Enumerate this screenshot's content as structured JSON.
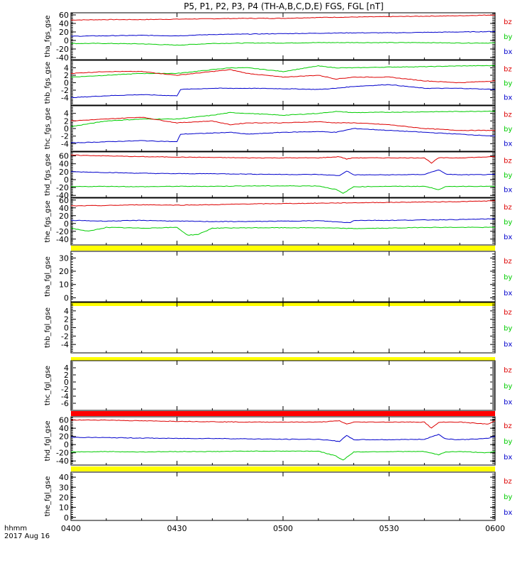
{
  "title": "P5, P1, P2, P3, P4 (TH-A,B,C,D,E) FGS, FGL [nT]",
  "footer": {
    "hhmm": "hhmm",
    "date": "2017 Aug 16"
  },
  "colors": {
    "bz": "#dd0000",
    "by": "#00cc00",
    "bx": "#0000cc",
    "yellow": "#ffff00",
    "red_bar": "#ff0000"
  },
  "chart_data": {
    "type": "line",
    "x_ticks": [
      "0400",
      "0430",
      "0500",
      "0530",
      "0600"
    ],
    "x_range": [
      0,
      120
    ],
    "x_unit": "minutes after 04:00 UT",
    "legend": [
      "bz",
      "by",
      "bx"
    ],
    "panels": [
      {
        "label": "tha_fgs_gse",
        "ylim": [
          -45,
          65
        ],
        "ticks": [
          60,
          40,
          20,
          0,
          -20,
          -40
        ],
        "series": [
          {
            "name": "bz",
            "x": [
              0,
              10,
              20,
              30,
              40,
              50,
              60,
              70,
              80,
              90,
              100,
              110,
              120
            ],
            "y": [
              48,
              49,
              49,
              50,
              51,
              52,
              52,
              54,
              55,
              56,
              57,
              58,
              60
            ]
          },
          {
            "name": "by",
            "x": [
              0,
              10,
              20,
              30,
              40,
              50,
              60,
              70,
              80,
              90,
              100,
              110,
              120
            ],
            "y": [
              -7,
              -7,
              -8,
              -11,
              -7,
              -6,
              -6,
              -5,
              -5,
              -5,
              -5,
              -6,
              -6
            ]
          },
          {
            "name": "bx",
            "x": [
              0,
              10,
              20,
              30,
              40,
              50,
              60,
              70,
              80,
              90,
              100,
              110,
              120
            ],
            "y": [
              10,
              11,
              12,
              11,
              14,
              15,
              16,
              17,
              18,
              18,
              19,
              20,
              21
            ]
          }
        ]
      },
      {
        "label": "thb_fgs_gse",
        "ylim": [
          -6,
          6
        ],
        "ticks": [
          4,
          2,
          0,
          -2,
          -4
        ],
        "series": [
          {
            "name": "by",
            "x": [
              0,
              10,
              20,
              30,
              40,
              45,
              50,
              60,
              70,
              75,
              80,
              90,
              100,
              110,
              120
            ],
            "y": [
              1.5,
              2.0,
              2.5,
              2.5,
              3.5,
              4.0,
              4.0,
              3.0,
              4.5,
              4.0,
              4.0,
              4.2,
              4.3,
              4.5,
              4.6
            ]
          },
          {
            "name": "bz",
            "x": [
              0,
              10,
              20,
              30,
              40,
              45,
              50,
              60,
              70,
              75,
              80,
              90,
              100,
              110,
              120
            ],
            "y": [
              2.5,
              3.0,
              3.0,
              2.0,
              3.0,
              3.5,
              2.5,
              1.5,
              2.0,
              1.0,
              1.5,
              1.5,
              0.5,
              0.0,
              0.5
            ]
          },
          {
            "name": "bx",
            "x": [
              0,
              10,
              20,
              30,
              31,
              40,
              45,
              50,
              60,
              70,
              75,
              80,
              90,
              100,
              110,
              120
            ],
            "y": [
              -4.0,
              -3.5,
              -3.2,
              -3.5,
              -1.8,
              -1.5,
              -1.5,
              -1.5,
              -1.6,
              -1.8,
              -1.5,
              -1.0,
              -0.5,
              -1.5,
              -1.5,
              -1.8
            ]
          }
        ]
      },
      {
        "label": "thc_fgs_gse",
        "ylim": [
          -6,
          6
        ],
        "ticks": [
          4,
          2,
          0,
          -2,
          -4
        ],
        "series": [
          {
            "name": "by",
            "x": [
              0,
              10,
              20,
              30,
              40,
              45,
              50,
              60,
              70,
              75,
              80,
              90,
              100,
              110,
              120
            ],
            "y": [
              0.5,
              2.0,
              2.5,
              2.5,
              3.5,
              4.2,
              4.0,
              3.5,
              4.0,
              4.5,
              4.2,
              4.3,
              4.4,
              4.5,
              4.6
            ]
          },
          {
            "name": "bz",
            "x": [
              0,
              10,
              20,
              30,
              40,
              45,
              50,
              60,
              70,
              75,
              80,
              90,
              100,
              110,
              120
            ],
            "y": [
              2.0,
              2.5,
              3.0,
              1.5,
              2.0,
              1.0,
              1.5,
              1.5,
              1.8,
              1.5,
              1.5,
              1.0,
              0.0,
              -0.5,
              -0.5
            ]
          },
          {
            "name": "bx",
            "x": [
              0,
              10,
              20,
              30,
              31,
              40,
              45,
              50,
              60,
              70,
              75,
              80,
              90,
              100,
              110,
              120
            ],
            "y": [
              -3.8,
              -3.5,
              -3.2,
              -3.5,
              -1.5,
              -1.2,
              -1.0,
              -1.5,
              -1.0,
              -0.8,
              -1.0,
              0.0,
              -0.5,
              -1.0,
              -1.5,
              -2.0
            ]
          }
        ]
      },
      {
        "label": "thd_fgs_gse",
        "ylim": [
          -45,
          70
        ],
        "ticks": [
          60,
          40,
          20,
          0,
          -20,
          -40
        ],
        "series": [
          {
            "name": "bz",
            "x": [
              0,
              10,
              20,
              30,
              40,
              50,
              60,
              70,
              76,
              78,
              80,
              90,
              100,
              102,
              104,
              106,
              110,
              120
            ],
            "y": [
              62,
              60,
              58,
              57,
              56,
              55,
              55,
              55,
              58,
              52,
              55,
              55,
              55,
              42,
              55,
              55,
              55,
              58
            ]
          },
          {
            "name": "bx",
            "x": [
              0,
              10,
              20,
              30,
              40,
              50,
              60,
              70,
              76,
              78,
              80,
              90,
              100,
              104,
              106,
              110,
              120
            ],
            "y": [
              20,
              18,
              16,
              15,
              15,
              14,
              13,
              13,
              10,
              22,
              12,
              12,
              13,
              25,
              14,
              12,
              13
            ]
          },
          {
            "name": "by",
            "x": [
              0,
              10,
              20,
              30,
              40,
              50,
              60,
              70,
              75,
              77,
              80,
              90,
              100,
              104,
              106,
              110,
              120
            ],
            "y": [
              -18,
              -17,
              -18,
              -17,
              -17,
              -16,
              -16,
              -16,
              -25,
              -35,
              -18,
              -17,
              -17,
              -25,
              -18,
              -17,
              -17
            ]
          }
        ]
      },
      {
        "label": "the_fgs_gse",
        "ylim": [
          -55,
          65
        ],
        "ticks": [
          60,
          40,
          20,
          0,
          -20,
          -40
        ],
        "series": [
          {
            "name": "bz",
            "x": [
              0,
              10,
              20,
              30,
              40,
              50,
              60,
              70,
              80,
              90,
              100,
              110,
              120
            ],
            "y": [
              45,
              46,
              48,
              47,
              48,
              50,
              51,
              52,
              53,
              54,
              55,
              56,
              58
            ]
          },
          {
            "name": "bx",
            "x": [
              0,
              10,
              20,
              30,
              40,
              50,
              60,
              70,
              79,
              80,
              90,
              100,
              110,
              120
            ],
            "y": [
              8,
              6,
              8,
              6,
              5,
              5,
              6,
              7,
              2,
              8,
              8,
              9,
              10,
              12
            ]
          },
          {
            "name": "by",
            "x": [
              0,
              5,
              10,
              20,
              30,
              33,
              36,
              40,
              50,
              60,
              70,
              80,
              90,
              100,
              110,
              120
            ],
            "y": [
              -12,
              -20,
              -10,
              -12,
              -10,
              -30,
              -28,
              -12,
              -11,
              -11,
              -11,
              -13,
              -12,
              -10,
              -10,
              -10
            ]
          }
        ]
      },
      {
        "label": "tha_fgl_gse",
        "ylim": [
          -3,
          35
        ],
        "ticks": [
          30,
          20,
          10,
          0
        ],
        "series": []
      },
      {
        "label": "thb_fgl_gse",
        "ylim": [
          -6,
          6
        ],
        "ticks": [
          4,
          2,
          0,
          -2,
          -4
        ],
        "series": []
      },
      {
        "label": "thc_fgl_gse",
        "ylim": [
          -8,
          6
        ],
        "ticks": [
          4,
          2,
          0,
          -2,
          -4,
          -6
        ],
        "series": []
      },
      {
        "label": "thd_fgl_gse",
        "ylim": [
          -50,
          68
        ],
        "ticks": [
          60,
          40,
          20,
          0,
          -20,
          -40
        ],
        "series": [
          {
            "name": "bz",
            "x": [
              0,
              10,
              20,
              30,
              40,
              50,
              60,
              70,
              76,
              78,
              80,
              90,
              100,
              102,
              104,
              106,
              110,
              118,
              120
            ],
            "y": [
              60,
              60,
              58,
              57,
              56,
              55,
              55,
              55,
              58,
              50,
              55,
              55,
              55,
              40,
              54,
              55,
              55,
              50,
              58
            ]
          },
          {
            "name": "bx",
            "x": [
              0,
              10,
              20,
              30,
              40,
              50,
              60,
              70,
              76,
              78,
              80,
              90,
              100,
              104,
              106,
              110,
              118,
              120
            ],
            "y": [
              18,
              17,
              16,
              15,
              15,
              14,
              13,
              13,
              8,
              22,
              12,
              12,
              13,
              25,
              14,
              12,
              15,
              20
            ]
          },
          {
            "name": "by",
            "x": [
              0,
              10,
              20,
              30,
              40,
              50,
              60,
              70,
              75,
              77,
              80,
              90,
              100,
              104,
              106,
              110,
              118,
              120
            ],
            "y": [
              -18,
              -17,
              -18,
              -17,
              -17,
              -16,
              -16,
              -16,
              -28,
              -38,
              -18,
              -17,
              -17,
              -25,
              -18,
              -17,
              -20,
              -17
            ]
          }
        ]
      },
      {
        "label": "the_fgl_gse",
        "ylim": [
          -3,
          45
        ],
        "ticks": [
          40,
          30,
          20,
          10,
          0
        ],
        "series": []
      }
    ]
  }
}
